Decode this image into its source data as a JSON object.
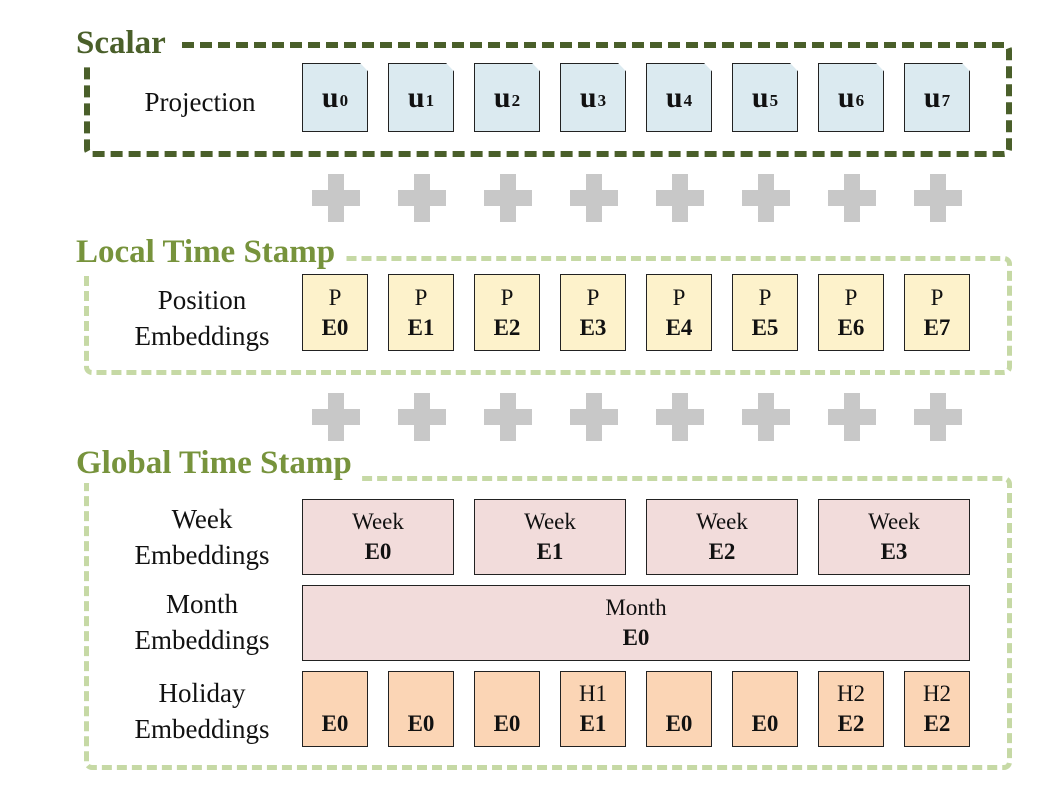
{
  "sections": {
    "scalar": {
      "title": "Scalar",
      "row_label": "Projection",
      "cells": [
        {
          "base": "u",
          "sub": "0"
        },
        {
          "base": "u",
          "sub": "1"
        },
        {
          "base": "u",
          "sub": "2"
        },
        {
          "base": "u",
          "sub": "3"
        },
        {
          "base": "u",
          "sub": "4"
        },
        {
          "base": "u",
          "sub": "5"
        },
        {
          "base": "u",
          "sub": "6"
        },
        {
          "base": "u",
          "sub": "7"
        }
      ]
    },
    "local": {
      "title": "Local Time Stamp",
      "row_label_1": "Position",
      "row_label_2": "Embeddings",
      "cells": [
        {
          "top": "P",
          "bottom": "E0"
        },
        {
          "top": "P",
          "bottom": "E1"
        },
        {
          "top": "P",
          "bottom": "E2"
        },
        {
          "top": "P",
          "bottom": "E3"
        },
        {
          "top": "P",
          "bottom": "E4"
        },
        {
          "top": "P",
          "bottom": "E5"
        },
        {
          "top": "P",
          "bottom": "E6"
        },
        {
          "top": "P",
          "bottom": "E7"
        }
      ]
    },
    "global": {
      "title": "Global Time Stamp",
      "week": {
        "row_label_1": "Week",
        "row_label_2": "Embeddings",
        "cells": [
          {
            "top": "Week",
            "bottom": "E0"
          },
          {
            "top": "Week",
            "bottom": "E1"
          },
          {
            "top": "Week",
            "bottom": "E2"
          },
          {
            "top": "Week",
            "bottom": "E3"
          }
        ]
      },
      "month": {
        "row_label_1": "Month",
        "row_label_2": "Embeddings",
        "cell": {
          "top": "Month",
          "bottom": "E0"
        }
      },
      "holiday": {
        "row_label_1": "Holiday",
        "row_label_2": "Embeddings",
        "cells": [
          {
            "top": "",
            "bottom": "E0"
          },
          {
            "top": "",
            "bottom": "E0"
          },
          {
            "top": "",
            "bottom": "E0"
          },
          {
            "top": "H1",
            "bottom": "E1"
          },
          {
            "top": "",
            "bottom": "E0"
          },
          {
            "top": "",
            "bottom": "E0"
          },
          {
            "top": "H2",
            "bottom": "E2"
          },
          {
            "top": "H2",
            "bottom": "E2"
          }
        ]
      }
    }
  },
  "colors": {
    "scalar_border": "#4a5f2a",
    "light_border": "#c6d9a5",
    "projection_fill": "#dbeaf0",
    "position_fill": "#fdf2cb",
    "week_month_fill": "#f2dcdb",
    "holiday_fill": "#fbd5b5",
    "plus_sign": "#c8c8c8"
  }
}
